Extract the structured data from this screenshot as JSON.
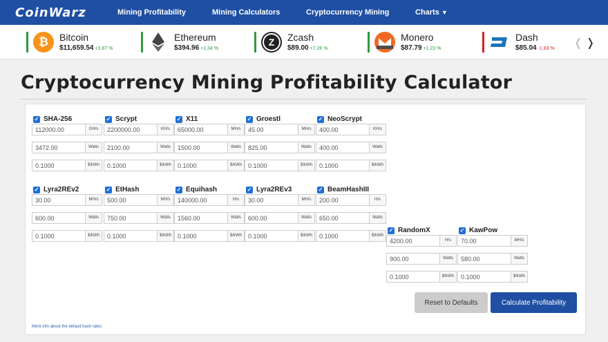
{
  "nav": {
    "logo": "CoinWarz",
    "items": [
      "Mining Profitability",
      "Mining Calculators",
      "Cryptocurrency Mining",
      "Charts"
    ]
  },
  "coins": [
    {
      "name": "Bitcoin",
      "price": "$11,659.54",
      "change": "+3.87 %",
      "dir": "up",
      "icon": "bitcoin-icon",
      "color": "#f7931a",
      "stripe": "#2e9a3c"
    },
    {
      "name": "Ethereum",
      "price": "$394.96",
      "change": "+1.34 %",
      "dir": "up",
      "icon": "ethereum-icon",
      "color": "#444444",
      "stripe": "#2e9a3c"
    },
    {
      "name": "Zcash",
      "price": "$89.00",
      "change": "+7.26 %",
      "dir": "up",
      "icon": "zcash-icon",
      "color": "#222222",
      "stripe": "#2e9a3c"
    },
    {
      "name": "Monero",
      "price": "$87.79",
      "change": "+1.23 %",
      "dir": "up",
      "icon": "monero-icon",
      "color": "#f26822",
      "stripe": "#2e9a3c"
    },
    {
      "name": "Dash",
      "price": "$85.04",
      "change": "-1.83 %",
      "dir": "down",
      "icon": "dash-icon",
      "color": "#1c75bc",
      "stripe": "#d22222"
    }
  ],
  "page": {
    "title": "Cryptocurrency Mining Profitability Calculator"
  },
  "algorithms": [
    {
      "name": "SHA-256",
      "hashrate": "112000.00",
      "hash_unit": "GH/s",
      "power": "3472.00",
      "power_unit": "Watts",
      "cost": "0.1000",
      "cost_unit": "$/kWh"
    },
    {
      "name": "Scrypt",
      "hashrate": "2200000.00",
      "hash_unit": "KH/s",
      "power": "2100.00",
      "power_unit": "Watts",
      "cost": "0.1000",
      "cost_unit": "$/kWh"
    },
    {
      "name": "X11",
      "hashrate": "65000.00",
      "hash_unit": "MH/s",
      "power": "1500.00",
      "power_unit": "Watts",
      "cost": "0.1000",
      "cost_unit": "$/kWh"
    },
    {
      "name": "Groestl",
      "hashrate": "45.00",
      "hash_unit": "MH/s",
      "power": "825.00",
      "power_unit": "Watts",
      "cost": "0.1000",
      "cost_unit": "$/kWh"
    },
    {
      "name": "NeoScrypt",
      "hashrate": "400.00",
      "hash_unit": "KH/s",
      "power": "400.00",
      "power_unit": "Watts",
      "cost": "0.1000",
      "cost_unit": "$/kWh"
    },
    {
      "name": "Lyra2REv2",
      "hashrate": "30.00",
      "hash_unit": "MH/s",
      "power": "600.00",
      "power_unit": "Watts",
      "cost": "0.1000",
      "cost_unit": "$/kWh"
    },
    {
      "name": "EtHash",
      "hashrate": "500.00",
      "hash_unit": "MH/s",
      "power": "750.00",
      "power_unit": "Watts",
      "cost": "0.1000",
      "cost_unit": "$/kWh"
    },
    {
      "name": "Equihash",
      "hashrate": "140000.00",
      "hash_unit": "H/s",
      "power": "1560.00",
      "power_unit": "Watts",
      "cost": "0.1000",
      "cost_unit": "$/kWh"
    },
    {
      "name": "Lyra2REv3",
      "hashrate": "30.00",
      "hash_unit": "MH/s",
      "power": "600.00",
      "power_unit": "Watts",
      "cost": "0.1000",
      "cost_unit": "$/kWh"
    },
    {
      "name": "BeamHashIII",
      "hashrate": "200.00",
      "hash_unit": "H/s",
      "power": "650.00",
      "power_unit": "Watts",
      "cost": "0.1000",
      "cost_unit": "$/kWh"
    },
    {
      "name": "RandomX",
      "hashrate": "4200.00",
      "hash_unit": "H/s",
      "power": "900.00",
      "power_unit": "Watts",
      "cost": "0.1000",
      "cost_unit": "$/kWh"
    },
    {
      "name": "KawPow",
      "hashrate": "70.00",
      "hash_unit": "MH/s",
      "power": "580.00",
      "power_unit": "Watts",
      "cost": "0.1000",
      "cost_unit": "$/kWh"
    }
  ],
  "buttons": {
    "reset": "Reset to Defaults",
    "calculate": "Calculate Profitability"
  },
  "footnote": "More info about the default hash rates"
}
